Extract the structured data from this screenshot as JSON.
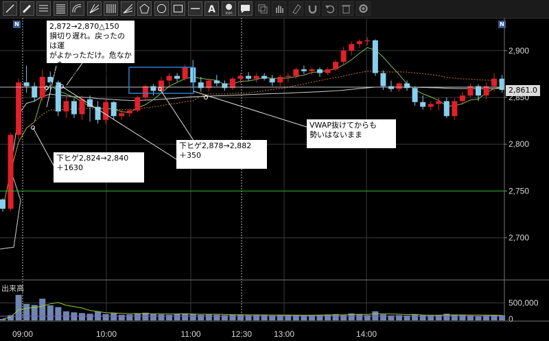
{
  "toolbar": {
    "tools": [
      "line-tool-icon",
      "pencil-tool-icon",
      "horizontal-lines-icon",
      "fibonacci-lines-icon",
      "arc-tool-icon",
      "pitchfork-icon",
      "vertical-lines-icon",
      "fan-tool-icon",
      "pentagon-icon",
      "circle-icon",
      "rectangle-icon",
      "horizontal-line-icon",
      "text-tool-icon",
      "icon-stamp-icon",
      "note-icon",
      "copy-icon",
      "hand-icon",
      "eraser-icon",
      "magnet-icon",
      "undo-icon",
      "delete-icon",
      "settings-icon"
    ],
    "text_tool_label": "A",
    "stamp_label": "icon"
  },
  "markers": {
    "left": "N",
    "right": "N"
  },
  "volume_label": "出来高",
  "price_badge": "2,861.0",
  "notes": [
    "2,872→2,870△150\n損切り遅れ。戻ったのは運\nがよかっただけ。危なかった\n下ヒゲ陽線も絶対はない",
    "下ヒゲ2,824→2,840\n＋1630",
    "下ヒゲ2,878→2,882\n＋350",
    "VWAP抜けてからも\n勢いはないまま"
  ],
  "chart_data": {
    "type": "candlestick",
    "x_ticks": [
      "09:00",
      "10:00",
      "11:00",
      "12:30",
      "13:00",
      "14:00"
    ],
    "y_ticks": [
      2700,
      2750,
      2800,
      2850,
      2900
    ],
    "ylim": [
      2655,
      2935
    ],
    "volume_ticks": [
      "500,000",
      "0"
    ],
    "horizontal_lines": [
      {
        "value": 2750,
        "color": "#28b428"
      },
      {
        "value": 2861,
        "color": "#bfbfbf"
      }
    ],
    "candles": [
      [
        2741,
        2742,
        2728,
        2731
      ],
      [
        2731,
        2812,
        2729,
        2810
      ],
      [
        2810,
        2870,
        2805,
        2866
      ],
      [
        2866,
        2884,
        2855,
        2862
      ],
      [
        2862,
        2866,
        2845,
        2850
      ],
      [
        2850,
        2880,
        2846,
        2872
      ],
      [
        2872,
        2878,
        2858,
        2866
      ],
      [
        2866,
        2868,
        2830,
        2835
      ],
      [
        2835,
        2852,
        2828,
        2846
      ],
      [
        2846,
        2849,
        2828,
        2832
      ],
      [
        2832,
        2852,
        2826,
        2848
      ],
      [
        2848,
        2852,
        2824,
        2840
      ],
      [
        2840,
        2846,
        2822,
        2826
      ],
      [
        2826,
        2849,
        2822,
        2845
      ],
      [
        2845,
        2846,
        2826,
        2830
      ],
      [
        2830,
        2837,
        2826,
        2833
      ],
      [
        2833,
        2838,
        2829,
        2836
      ],
      [
        2836,
        2852,
        2834,
        2850
      ],
      [
        2850,
        2864,
        2846,
        2862
      ],
      [
        2862,
        2864,
        2852,
        2857
      ],
      [
        2857,
        2872,
        2855,
        2868
      ],
      [
        2868,
        2876,
        2863,
        2873
      ],
      [
        2873,
        2876,
        2867,
        2870
      ],
      [
        2870,
        2885,
        2868,
        2882
      ],
      [
        2882,
        2890,
        2860,
        2866
      ],
      [
        2866,
        2872,
        2856,
        2860
      ],
      [
        2860,
        2870,
        2856,
        2868
      ],
      [
        2868,
        2874,
        2862,
        2865
      ],
      [
        2865,
        2868,
        2857,
        2860
      ],
      [
        2860,
        2872,
        2858,
        2870
      ],
      [
        2870,
        2876,
        2865,
        2873
      ],
      [
        2873,
        2877,
        2868,
        2870
      ],
      [
        2870,
        2876,
        2866,
        2873
      ],
      [
        2873,
        2876,
        2868,
        2870
      ],
      [
        2870,
        2874,
        2862,
        2866
      ],
      [
        2866,
        2874,
        2862,
        2872
      ],
      [
        2872,
        2876,
        2866,
        2873
      ],
      [
        2873,
        2882,
        2870,
        2880
      ],
      [
        2880,
        2884,
        2875,
        2878
      ],
      [
        2878,
        2882,
        2874,
        2880
      ],
      [
        2880,
        2882,
        2872,
        2876
      ],
      [
        2876,
        2882,
        2874,
        2880
      ],
      [
        2880,
        2890,
        2878,
        2888
      ],
      [
        2888,
        2904,
        2884,
        2900
      ],
      [
        2900,
        2910,
        2895,
        2907
      ],
      [
        2907,
        2912,
        2903,
        2910
      ],
      [
        2910,
        2914,
        2906,
        2911
      ],
      [
        2911,
        2912,
        2873,
        2876
      ],
      [
        2876,
        2879,
        2858,
        2862
      ],
      [
        2862,
        2868,
        2856,
        2859
      ],
      [
        2859,
        2866,
        2856,
        2865
      ],
      [
        2865,
        2868,
        2857,
        2860
      ],
      [
        2860,
        2862,
        2841,
        2845
      ],
      [
        2845,
        2852,
        2837,
        2840
      ],
      [
        2840,
        2846,
        2836,
        2843
      ],
      [
        2843,
        2850,
        2836,
        2846
      ],
      [
        2846,
        2850,
        2828,
        2830
      ],
      [
        2830,
        2849,
        2826,
        2846
      ],
      [
        2846,
        2856,
        2842,
        2852
      ],
      [
        2852,
        2865,
        2850,
        2862
      ],
      [
        2862,
        2864,
        2846,
        2852
      ],
      [
        2852,
        2866,
        2848,
        2862
      ],
      [
        2862,
        2876,
        2856,
        2870
      ],
      [
        2870,
        2874,
        2855,
        2858
      ]
    ],
    "volumes": [
      40,
      150,
      730,
      470,
      440,
      620,
      430,
      380,
      260,
      230,
      210,
      190,
      250,
      180,
      210,
      160,
      170,
      200,
      220,
      180,
      170,
      160,
      180,
      200,
      190,
      160,
      170,
      160,
      150,
      160,
      170,
      150,
      160,
      150,
      140,
      150,
      160,
      150,
      140,
      150,
      160,
      170,
      180,
      150,
      200,
      180,
      150,
      260,
      170,
      140,
      150,
      140,
      170,
      150,
      140,
      150,
      190,
      160,
      150,
      140,
      130,
      140,
      160,
      150
    ]
  }
}
